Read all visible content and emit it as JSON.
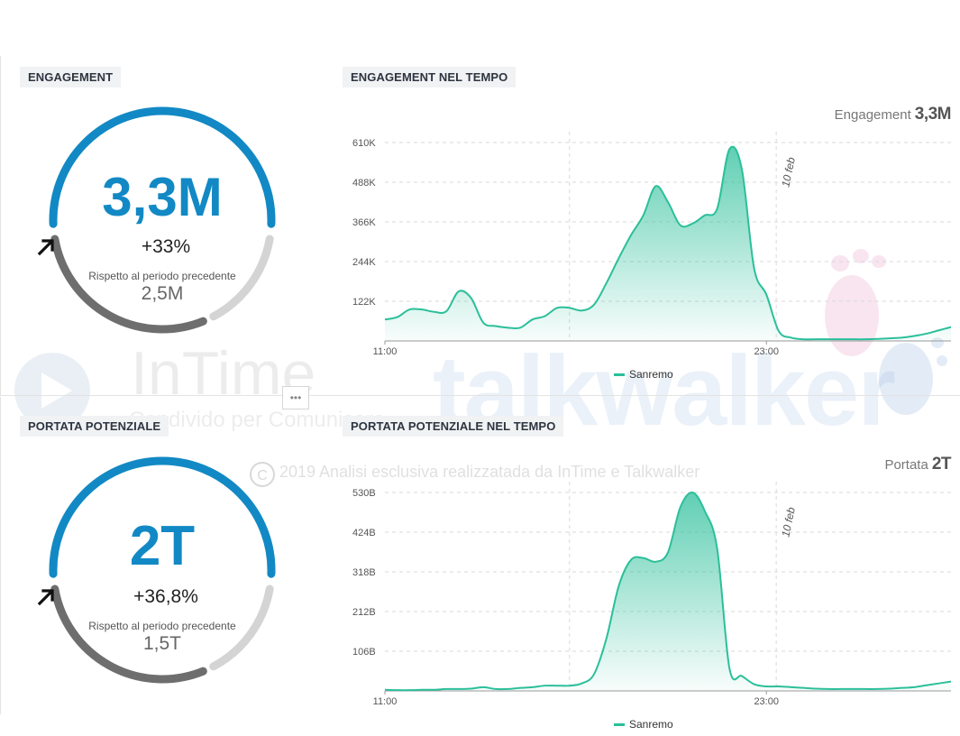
{
  "panels": {
    "engagement_label": "ENGAGEMENT",
    "engagement_time_label": "ENGAGEMENT NEL TEMPO",
    "reach_label": "PORTATA POTENZIALE",
    "reach_time_label": "PORTATA POTENZIALE NEL TEMPO"
  },
  "gauges": {
    "engagement": {
      "value": "3,3M",
      "delta": "+33%",
      "compare_label": "Rispetto al periodo precedente",
      "previous": "2,5M"
    },
    "reach": {
      "value": "2T",
      "delta": "+36,8%",
      "compare_label": "Rispetto al periodo precedente",
      "previous": "1,5T"
    }
  },
  "charts": {
    "engagement": {
      "metric_label": "Engagement",
      "metric_value": "3,3M",
      "date_marker": "10 feb",
      "legend": "Sanremo"
    },
    "reach": {
      "metric_label": "Portata",
      "metric_value": "2T",
      "date_marker": "10 feb",
      "legend": "Sanremo"
    }
  },
  "watermark": {
    "brand1": "InTime",
    "brand1_sub": "Condivido per Comunicare",
    "brand2": "talkwalker",
    "copyright": "2019 Analisi esclusiva realizzatada da InTime e Talkwalker",
    "copyright_symbol": "C"
  },
  "handle": "•••",
  "colors": {
    "accent": "#1289c4",
    "series": "#2bbf9a",
    "gauge_dark": "#6e6e6e",
    "gauge_light": "#d4d4d4"
  },
  "chart_data": [
    {
      "type": "area",
      "title": "ENGAGEMENT NEL TEMPO",
      "x_ticks": [
        "11:00",
        "23:00"
      ],
      "y_ticks": [
        "122K",
        "244K",
        "366K",
        "488K",
        "610K"
      ],
      "ylim": [
        0,
        600000
      ],
      "grid": true,
      "legend_position": "bottom",
      "annotation": "10 feb",
      "x": [
        0,
        0.5,
        1,
        1.5,
        2,
        2.5,
        3,
        3.5,
        4,
        4.5,
        5,
        5.5,
        6,
        6.5,
        7,
        7.5,
        8,
        8.5,
        9,
        9.5,
        10,
        10.5,
        11,
        11.5,
        12,
        12.5,
        13,
        13.5,
        14,
        14.5,
        15,
        15.5,
        16,
        16.5,
        17,
        17.5,
        18,
        18.5,
        19,
        19.5,
        20,
        20.5,
        21,
        21.5,
        22,
        22.5,
        23
      ],
      "series": [
        {
          "name": "Sanremo",
          "values": [
            65000,
            72000,
            95000,
            95000,
            88000,
            90000,
            150000,
            130000,
            55000,
            45000,
            40000,
            40000,
            65000,
            75000,
            100000,
            100000,
            92000,
            110000,
            175000,
            250000,
            320000,
            380000,
            468000,
            420000,
            350000,
            355000,
            380000,
            400000,
            580000,
            520000,
            220000,
            140000,
            30000,
            10000,
            5000,
            5000,
            5000,
            5000,
            5000,
            5000,
            6000,
            8000,
            10000,
            15000,
            22000,
            32000,
            42000
          ]
        }
      ]
    },
    {
      "type": "area",
      "title": "PORTATA POTENZIALE NEL TEMPO",
      "x_ticks": [
        "11:00",
        "23:00"
      ],
      "y_ticks": [
        "106B",
        "212B",
        "318B",
        "424B",
        "530B"
      ],
      "ylim": [
        0,
        530
      ],
      "grid": true,
      "legend_position": "bottom",
      "annotation": "10 feb",
      "x": [
        0,
        0.5,
        1,
        1.5,
        2,
        2.5,
        3,
        3.5,
        4,
        4.5,
        5,
        5.5,
        6,
        6.5,
        7,
        7.5,
        8,
        8.5,
        9,
        9.5,
        10,
        10.5,
        11,
        11.5,
        12,
        12.5,
        13,
        13.5,
        14,
        14.5,
        15,
        15.5,
        16,
        16.5,
        17,
        17.5,
        18,
        18.5,
        19,
        19.5,
        20,
        20.5,
        21,
        21.5,
        22,
        22.5,
        23
      ],
      "series": [
        {
          "name": "Sanremo",
          "values": [
            3,
            2,
            2,
            3,
            3,
            5,
            5,
            6,
            10,
            5,
            5,
            8,
            10,
            14,
            14,
            14,
            20,
            45,
            140,
            280,
            350,
            355,
            345,
            370,
            490,
            530,
            480,
            380,
            60,
            40,
            18,
            12,
            12,
            10,
            8,
            6,
            5,
            5,
            5,
            5,
            5,
            6,
            8,
            10,
            15,
            20,
            25
          ]
        }
      ]
    }
  ]
}
